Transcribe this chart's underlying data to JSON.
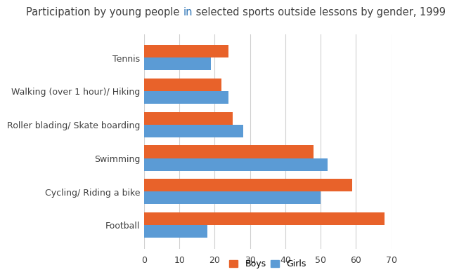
{
  "title_parts": [
    {
      "text": "Participation by young people ",
      "color": "#404040"
    },
    {
      "text": "in",
      "color": "#2E75B6"
    },
    {
      "text": " selected sports outside lessons by gender, 1999",
      "color": "#404040"
    }
  ],
  "categories": [
    "Football",
    "Cycling/ Riding a bike",
    "Swimming",
    "Roller blading/ Skate boarding",
    "Walking (over 1 hour)/ Hiking",
    "Tennis"
  ],
  "boys": [
    68,
    59,
    48,
    25,
    22,
    24
  ],
  "girls": [
    18,
    50,
    52,
    28,
    24,
    19
  ],
  "boys_color": "#E8622A",
  "girls_color": "#5B9BD5",
  "xlim": [
    0,
    70
  ],
  "xticks": [
    0,
    10,
    20,
    30,
    40,
    50,
    60,
    70
  ],
  "title_fontsize": 10.5,
  "label_fontsize": 9,
  "legend_labels": [
    "Boys",
    "Girls"
  ],
  "bar_height": 0.38,
  "grid_color": "#D0D0D0"
}
